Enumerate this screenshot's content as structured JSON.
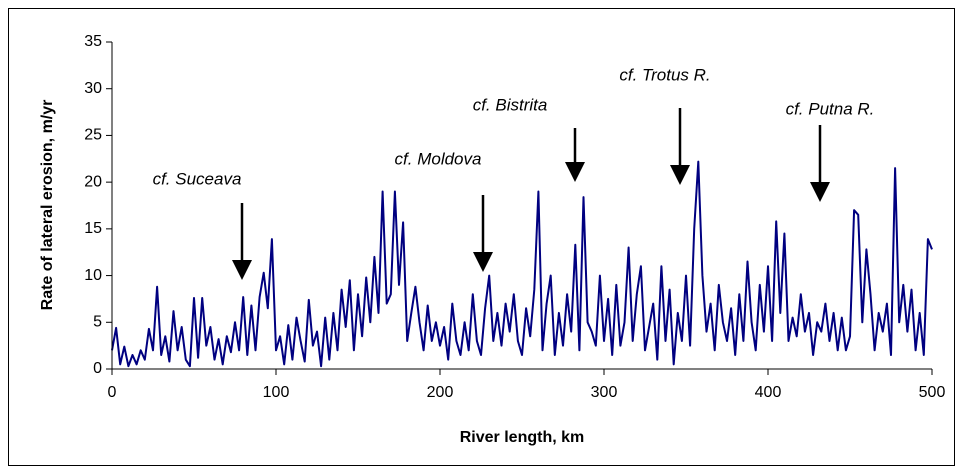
{
  "chart_data": {
    "type": "line",
    "xlabel": "River length, km",
    "ylabel": "Rate of lateral erosion, m/yr",
    "annotations": [
      "cf. Suceava",
      "cf. Moldova",
      "cf. Bistrita",
      "cf. Trotus R.",
      "cf. Putna R."
    ],
    "color": "#000080",
    "xlim": [
      0,
      500
    ],
    "xticks": [
      0,
      100,
      200,
      300,
      400,
      500
    ],
    "ylim": [
      0,
      35
    ],
    "yticks": [
      0,
      5,
      10,
      15,
      20,
      25,
      30,
      35
    ],
    "grid": false,
    "x": [
      0,
      2.5,
      5,
      7.5,
      10,
      12.5,
      15,
      17.5,
      20,
      22.5,
      25,
      27.5,
      30,
      32.5,
      35,
      37.5,
      40,
      42.5,
      45,
      47.5,
      50,
      52.5,
      55,
      57.5,
      60,
      62.5,
      65,
      67.5,
      70,
      72.5,
      75,
      77.5,
      80,
      82.5,
      85,
      87.5,
      90,
      92.5,
      95,
      97.5,
      100,
      102.5,
      105,
      107.5,
      110,
      112.5,
      115,
      117.5,
      120,
      122.5,
      125,
      127.5,
      130,
      132.5,
      135,
      137.5,
      140,
      142.5,
      145,
      147.5,
      150,
      152.5,
      155,
      157.5,
      160,
      162.5,
      165,
      167.5,
      170,
      172.5,
      175,
      177.5,
      180,
      182.5,
      185,
      187.5,
      190,
      192.5,
      195,
      197.5,
      200,
      202.5,
      205,
      207.5,
      210,
      212.5,
      215,
      217.5,
      220,
      222.5,
      225,
      227.5,
      230,
      232.5,
      235,
      237.5,
      240,
      242.5,
      245,
      247.5,
      250,
      252.5,
      255,
      257.5,
      260,
      262.5,
      265,
      267.5,
      270,
      272.5,
      275,
      277.5,
      280,
      282.5,
      285,
      287.5,
      290,
      292.5,
      295,
      297.5,
      300,
      302.5,
      305,
      307.5,
      310,
      312.5,
      315,
      317.5,
      320,
      322.5,
      325,
      327.5,
      330,
      332.5,
      335,
      337.5,
      340,
      342.5,
      345,
      347.5,
      350,
      352.5,
      355,
      357.5,
      360,
      362.5,
      365,
      367.5,
      370,
      372.5,
      375,
      377.5,
      380,
      382.5,
      385,
      387.5,
      390,
      392.5,
      395,
      397.5,
      400,
      402.5,
      405,
      407.5,
      410,
      412.5,
      415,
      417.5,
      420,
      422.5,
      425,
      427.5,
      430,
      432.5,
      435,
      437.5,
      440,
      442.5,
      445,
      447.5,
      450,
      452.5,
      455,
      457.5,
      460,
      462.5,
      465,
      467.5,
      470,
      472.5,
      475,
      477.5,
      480,
      482.5,
      485,
      487.5,
      490,
      492.5,
      495,
      497.5,
      500
    ],
    "values": [
      2,
      4.4,
      0.5,
      2.4,
      0.3,
      1.5,
      0.5,
      2,
      1,
      4.3,
      2,
      8.8,
      1.5,
      3.5,
      0.8,
      6.2,
      2,
      4.5,
      1,
      0.3,
      7.6,
      1.2,
      7.6,
      2.5,
      4.5,
      1,
      3.2,
      0.5,
      3.5,
      1.8,
      5,
      2,
      7.7,
      1.5,
      6.8,
      2,
      7.7,
      10.3,
      6.5,
      13.9,
      2,
      3.5,
      0.5,
      4.7,
      1,
      5.5,
      3,
      0.8,
      7.4,
      2.5,
      4,
      0.3,
      5.5,
      1,
      6,
      2,
      8.5,
      4.5,
      9.5,
      2,
      8,
      3.5,
      9.8,
      5,
      12,
      6,
      19,
      7,
      8,
      19,
      9,
      15.7,
      3,
      6,
      8.8,
      5,
      2,
      6.8,
      3,
      5,
      2.5,
      4.5,
      1,
      7,
      3,
      1.5,
      5,
      2,
      8,
      3,
      1.5,
      6.5,
      10,
      3,
      6,
      2.5,
      7,
      4,
      8,
      3,
      1.5,
      6.5,
      3.5,
      8.5,
      19,
      2,
      7,
      10,
      1.5,
      6,
      2.5,
      8,
      4,
      13.3,
      2,
      18.4,
      5,
      4,
      2.5,
      10,
      3,
      7.5,
      1.5,
      9,
      2.5,
      5,
      13,
      3,
      8,
      11,
      2,
      4.5,
      7,
      1,
      11,
      3,
      8.5,
      0.5,
      6,
      3,
      10,
      2.5,
      15,
      22.2,
      10,
      4,
      7,
      2,
      9,
      5,
      3,
      6.5,
      1.5,
      8,
      3,
      11.5,
      5,
      2,
      9,
      4,
      11,
      3,
      15.8,
      6,
      14.5,
      3,
      5.5,
      3.5,
      8,
      4,
      6,
      1.5,
      5,
      4,
      7,
      3,
      6,
      2,
      5.5,
      2,
      3.5,
      17,
      16.5,
      5,
      12.8,
      8,
      2,
      6,
      4,
      7,
      1.5,
      21.5,
      5,
      9,
      4,
      8.5,
      2,
      6,
      1.5,
      13.9,
      12.8
    ]
  }
}
